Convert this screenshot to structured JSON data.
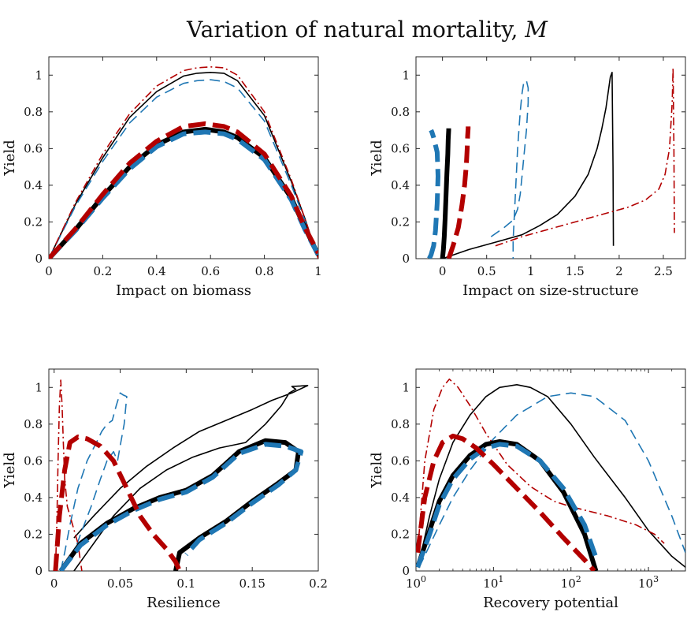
{
  "figure": {
    "title": "Variation of natural mortality, ",
    "title_symbol": "M"
  },
  "series_styles": [
    {
      "id": "A",
      "color": "#000000",
      "weight": "thin",
      "dash": "solid"
    },
    {
      "id": "B",
      "color": "#1f77b4",
      "weight": "thin",
      "dash": "dashed"
    },
    {
      "id": "C",
      "color": "#b30000",
      "weight": "thin",
      "dash": "dash-dot"
    },
    {
      "id": "D",
      "color": "#000000",
      "weight": "thick",
      "dash": "solid"
    },
    {
      "id": "E",
      "color": "#1f77b4",
      "weight": "thick",
      "dash": "dashed"
    },
    {
      "id": "F",
      "color": "#b30000",
      "weight": "thick",
      "dash": "dashed"
    }
  ],
  "chart_data": [
    {
      "type": "line",
      "title": "",
      "xlabel": "Impact on biomass",
      "ylabel": "Yield",
      "xlim": [
        0,
        1
      ],
      "ylim": [
        0,
        1.1
      ],
      "x_ticks": [
        0,
        0.2,
        0.4,
        0.6,
        0.8,
        1
      ],
      "x_tick_labels": [
        "0",
        "0.2",
        "0.4",
        "0.6",
        "0.8",
        "1"
      ],
      "y_ticks": [
        0,
        0.2,
        0.4,
        0.6,
        0.8,
        1
      ],
      "y_tick_labels": [
        "0",
        "0.2",
        "0.4",
        "0.6",
        "0.8",
        "1"
      ],
      "series": [
        {
          "style": "A",
          "x": [
            0,
            0.1,
            0.2,
            0.3,
            0.4,
            0.5,
            0.55,
            0.6,
            0.65,
            0.7,
            0.8,
            0.9,
            0.95,
            1.0
          ],
          "y": [
            0,
            0.3,
            0.55,
            0.77,
            0.91,
            0.995,
            1.01,
            1.015,
            1.01,
            0.97,
            0.78,
            0.42,
            0.22,
            0
          ]
        },
        {
          "style": "B",
          "x": [
            0,
            0.1,
            0.2,
            0.3,
            0.4,
            0.5,
            0.55,
            0.6,
            0.65,
            0.7,
            0.8,
            0.9,
            0.95,
            1.0
          ],
          "y": [
            0,
            0.29,
            0.53,
            0.74,
            0.88,
            0.955,
            0.97,
            0.975,
            0.965,
            0.93,
            0.75,
            0.4,
            0.21,
            0
          ]
        },
        {
          "style": "C",
          "x": [
            0,
            0.1,
            0.2,
            0.3,
            0.4,
            0.5,
            0.55,
            0.6,
            0.65,
            0.7,
            0.8,
            0.9,
            0.95,
            1.0
          ],
          "y": [
            0,
            0.31,
            0.57,
            0.79,
            0.94,
            1.025,
            1.04,
            1.045,
            1.04,
            1.0,
            0.8,
            0.43,
            0.22,
            0
          ]
        },
        {
          "style": "D",
          "x": [
            0,
            0.1,
            0.2,
            0.3,
            0.4,
            0.5,
            0.58,
            0.65,
            0.7,
            0.8,
            0.9,
            0.95,
            1.0
          ],
          "y": [
            0,
            0.16,
            0.34,
            0.5,
            0.62,
            0.69,
            0.705,
            0.69,
            0.66,
            0.55,
            0.33,
            0.17,
            0.02
          ]
        },
        {
          "style": "E",
          "x": [
            0,
            0.1,
            0.2,
            0.3,
            0.4,
            0.5,
            0.58,
            0.65,
            0.7,
            0.8,
            0.9,
            0.95,
            1.0
          ],
          "y": [
            0,
            0.155,
            0.33,
            0.49,
            0.61,
            0.68,
            0.69,
            0.68,
            0.65,
            0.54,
            0.32,
            0.16,
            0.02
          ]
        },
        {
          "style": "F",
          "x": [
            0,
            0.1,
            0.2,
            0.3,
            0.4,
            0.5,
            0.58,
            0.65,
            0.7,
            0.8,
            0.9,
            0.95,
            1.0
          ],
          "y": [
            0,
            0.165,
            0.35,
            0.52,
            0.64,
            0.72,
            0.735,
            0.72,
            0.69,
            0.57,
            0.34,
            0.17,
            0.03
          ]
        }
      ]
    },
    {
      "type": "line",
      "title": "",
      "xlabel": "Impact on size-structure",
      "ylabel": "Yield",
      "xlim": [
        -0.3,
        2.75
      ],
      "ylim": [
        0,
        1.1
      ],
      "x_ticks": [
        0,
        0.5,
        1,
        1.5,
        2,
        2.5
      ],
      "x_tick_labels": [
        "0",
        "0.5",
        "1",
        "1.5",
        "2",
        "2.5"
      ],
      "y_ticks": [
        0,
        0.2,
        0.4,
        0.6,
        0.8,
        1
      ],
      "y_tick_labels": [
        "0",
        "0.2",
        "0.4",
        "0.6",
        "0.8",
        "1"
      ],
      "series": [
        {
          "style": "A",
          "x": [
            0,
            0.3,
            0.6,
            0.9,
            1.1,
            1.3,
            1.5,
            1.65,
            1.75,
            1.8,
            1.85,
            1.88,
            1.9,
            1.92,
            1.93,
            1.935
          ],
          "y": [
            0,
            0.05,
            0.09,
            0.13,
            0.18,
            0.24,
            0.34,
            0.46,
            0.6,
            0.7,
            0.82,
            0.92,
            0.99,
            1.015,
            0.5,
            0.07
          ]
        },
        {
          "style": "B",
          "x": [
            0.55,
            0.7,
            0.8,
            0.85,
            0.88,
            0.9,
            0.92,
            0.95,
            0.97,
            0.97,
            0.95,
            0.92,
            0.9,
            0.88,
            0.85,
            0.82,
            0.8,
            0.8
          ],
          "y": [
            0.12,
            0.17,
            0.21,
            0.27,
            0.35,
            0.45,
            0.55,
            0.7,
            0.85,
            0.93,
            0.97,
            0.96,
            0.9,
            0.8,
            0.6,
            0.3,
            0.1,
            0
          ]
        },
        {
          "style": "C",
          "x": [
            0.6,
            0.9,
            1.2,
            1.5,
            1.8,
            2.1,
            2.3,
            2.45,
            2.52,
            2.57,
            2.6,
            2.61,
            2.62,
            2.625
          ],
          "y": [
            0.07,
            0.12,
            0.16,
            0.2,
            0.24,
            0.28,
            0.32,
            0.38,
            0.46,
            0.6,
            0.85,
            1.04,
            0.6,
            0.14
          ]
        },
        {
          "style": "D",
          "x": [
            0,
            0.01,
            0.02,
            0.03,
            0.04,
            0.05,
            0.06,
            0.065,
            0.07,
            0.07
          ],
          "y": [
            0,
            0.05,
            0.12,
            0.22,
            0.34,
            0.46,
            0.57,
            0.65,
            0.7,
            0.71
          ]
        },
        {
          "style": "E",
          "x": [
            -0.15,
            -0.13,
            -0.1,
            -0.08,
            -0.06,
            -0.05,
            -0.06,
            -0.1,
            -0.12,
            -0.13
          ],
          "y": [
            0,
            0.02,
            0.07,
            0.15,
            0.3,
            0.45,
            0.58,
            0.66,
            0.69,
            0.7
          ]
        },
        {
          "style": "F",
          "x": [
            0.07,
            0.12,
            0.18,
            0.22,
            0.25,
            0.27,
            0.28,
            0.285,
            0.29,
            0.29
          ],
          "y": [
            0,
            0.07,
            0.17,
            0.29,
            0.4,
            0.51,
            0.6,
            0.67,
            0.71,
            0.72
          ]
        }
      ]
    },
    {
      "type": "line",
      "title": "",
      "xlabel": "Resilience",
      "ylabel": "Yield",
      "xlim": [
        -0.004,
        0.2
      ],
      "ylim": [
        0,
        1.1
      ],
      "x_ticks": [
        0,
        0.05,
        0.1,
        0.15,
        0.2
      ],
      "x_tick_labels": [
        "0",
        "0.05",
        "0.1",
        "0.15",
        "0.2"
      ],
      "y_ticks": [
        0,
        0.2,
        0.4,
        0.6,
        0.8,
        1
      ],
      "y_tick_labels": [
        "0",
        "0.2",
        "0.4",
        "0.6",
        "0.8",
        "1"
      ],
      "series": [
        {
          "style": "A",
          "x": [
            0.015,
            0.025,
            0.045,
            0.065,
            0.085,
            0.105,
            0.125,
            0.145,
            0.16,
            0.172,
            0.178,
            0.183,
            0.18,
            0.192,
            0.18,
            0.165,
            0.15,
            0.13,
            0.11,
            0.09,
            0.07,
            0.05,
            0.03,
            0.015
          ],
          "y": [
            0,
            0.1,
            0.3,
            0.45,
            0.55,
            0.62,
            0.67,
            0.7,
            0.8,
            0.9,
            0.97,
            0.99,
            1.005,
            1.01,
            0.97,
            0.93,
            0.88,
            0.82,
            0.76,
            0.67,
            0.57,
            0.45,
            0.3,
            0.18
          ]
        },
        {
          "style": "B",
          "x": [
            0.005,
            0.008,
            0.012,
            0.018,
            0.025,
            0.032,
            0.036,
            0.04,
            0.044,
            0.047,
            0.05,
            0.052,
            0.055,
            0.053,
            0.05,
            0.048,
            0.045,
            0.04,
            0.035,
            0.028,
            0.02,
            0.015
          ],
          "y": [
            0,
            0.1,
            0.25,
            0.45,
            0.6,
            0.7,
            0.76,
            0.8,
            0.82,
            0.9,
            0.97,
            0.96,
            0.95,
            0.8,
            0.68,
            0.6,
            0.65,
            0.6,
            0.5,
            0.35,
            0.2,
            0.1
          ]
        },
        {
          "style": "C",
          "x": [
            0.001,
            0.002,
            0.003,
            0.004,
            0.005,
            0.006,
            0.007,
            0.008,
            0.01,
            0.014,
            0.018,
            0.02,
            0.021
          ],
          "y": [
            0,
            0.25,
            0.6,
            0.9,
            1.04,
            0.9,
            0.7,
            0.5,
            0.35,
            0.25,
            0.15,
            0.05,
            0
          ]
        },
        {
          "style": "D",
          "x": [
            0.005,
            0.02,
            0.04,
            0.06,
            0.08,
            0.1,
            0.12,
            0.14,
            0.16,
            0.175,
            0.185,
            0.183,
            0.17,
            0.15,
            0.13,
            0.11,
            0.095,
            0.092
          ],
          "y": [
            0,
            0.15,
            0.26,
            0.34,
            0.4,
            0.44,
            0.52,
            0.65,
            0.71,
            0.7,
            0.65,
            0.55,
            0.48,
            0.38,
            0.27,
            0.18,
            0.1,
            0
          ]
        },
        {
          "style": "E",
          "x": [
            0.005,
            0.02,
            0.04,
            0.06,
            0.08,
            0.1,
            0.12,
            0.14,
            0.16,
            0.175,
            0.187,
            0.183,
            0.17,
            0.15,
            0.13,
            0.11,
            0.1
          ],
          "y": [
            0,
            0.14,
            0.25,
            0.33,
            0.39,
            0.43,
            0.51,
            0.64,
            0.69,
            0.68,
            0.65,
            0.55,
            0.47,
            0.37,
            0.26,
            0.17,
            0.09
          ]
        },
        {
          "style": "F",
          "x": [
            0.001,
            0.004,
            0.008,
            0.012,
            0.018,
            0.025,
            0.035,
            0.045,
            0.055,
            0.065,
            0.075,
            0.085,
            0.092,
            0.095
          ],
          "y": [
            0,
            0.3,
            0.55,
            0.7,
            0.73,
            0.72,
            0.68,
            0.6,
            0.45,
            0.3,
            0.2,
            0.12,
            0.05,
            0
          ]
        }
      ]
    },
    {
      "type": "line",
      "title": "",
      "xlabel": "Recovery potential",
      "ylabel": "Yield",
      "x_scale": "log",
      "xlim": [
        1,
        3000
      ],
      "ylim": [
        0,
        1.1
      ],
      "x_ticks": [
        1,
        10,
        100,
        1000
      ],
      "x_tick_base": "10",
      "x_tick_exponents": [
        "0",
        "1",
        "2",
        "3"
      ],
      "y_ticks": [
        0,
        0.2,
        0.4,
        0.6,
        0.8,
        1
      ],
      "y_tick_labels": [
        "0",
        "0.2",
        "0.4",
        "0.6",
        "0.8",
        "1"
      ],
      "series": [
        {
          "style": "A",
          "x": [
            1.1,
            1.5,
            2,
            3,
            5,
            8,
            12,
            20,
            30,
            50,
            100,
            200,
            500,
            1000,
            2000,
            3000
          ],
          "y": [
            0.05,
            0.3,
            0.5,
            0.7,
            0.85,
            0.95,
            1.0,
            1.015,
            1.0,
            0.95,
            0.8,
            0.62,
            0.4,
            0.22,
            0.08,
            0.02
          ]
        },
        {
          "style": "B",
          "x": [
            1.1,
            2,
            3,
            5,
            10,
            20,
            50,
            100,
            200,
            500,
            1000,
            2000,
            3000
          ],
          "y": [
            0.02,
            0.25,
            0.4,
            0.55,
            0.72,
            0.85,
            0.95,
            0.97,
            0.95,
            0.82,
            0.6,
            0.3,
            0.1
          ]
        },
        {
          "style": "C",
          "x": [
            1.05,
            1.3,
            1.7,
            2.2,
            2.7,
            3.5,
            5,
            8,
            15,
            30,
            60,
            100,
            300,
            700,
            1200,
            1600
          ],
          "y": [
            0.1,
            0.6,
            0.88,
            1.0,
            1.045,
            1.0,
            0.9,
            0.75,
            0.58,
            0.46,
            0.38,
            0.35,
            0.3,
            0.25,
            0.2,
            0.15
          ]
        },
        {
          "style": "D",
          "x": [
            1.05,
            1.5,
            2,
            3,
            5,
            8,
            12,
            20,
            40,
            80,
            150,
            210
          ],
          "y": [
            0.02,
            0.22,
            0.38,
            0.52,
            0.63,
            0.69,
            0.705,
            0.69,
            0.6,
            0.43,
            0.2,
            0
          ]
        },
        {
          "style": "E",
          "x": [
            1.05,
            1.5,
            2,
            3,
            5,
            8,
            12,
            20,
            40,
            80,
            150,
            220
          ],
          "y": [
            0.02,
            0.2,
            0.36,
            0.5,
            0.61,
            0.67,
            0.69,
            0.68,
            0.6,
            0.45,
            0.25,
            0.05
          ]
        },
        {
          "style": "F",
          "x": [
            1.05,
            1.3,
            1.7,
            2.2,
            3,
            4,
            6,
            10,
            20,
            40,
            80,
            150,
            200
          ],
          "y": [
            0.1,
            0.4,
            0.6,
            0.7,
            0.735,
            0.72,
            0.67,
            0.58,
            0.45,
            0.32,
            0.18,
            0.06,
            0
          ]
        }
      ]
    }
  ]
}
